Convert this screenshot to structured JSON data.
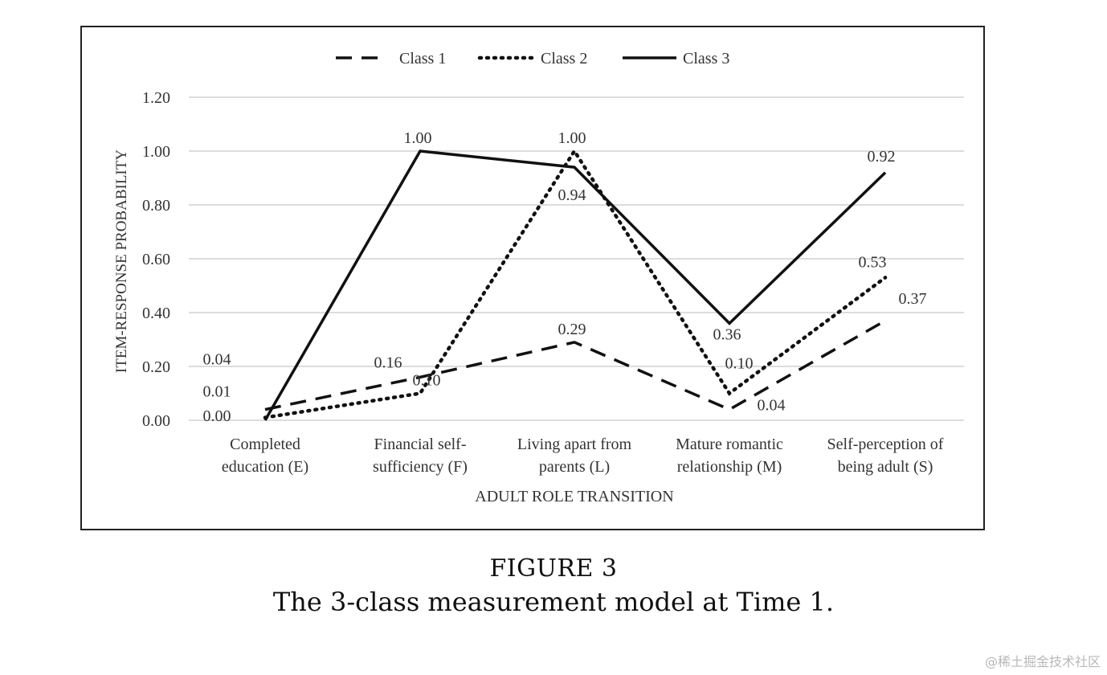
{
  "chart_data": {
    "type": "line",
    "title": "",
    "xlabel": "ADULT ROLE TRANSITION",
    "ylabel": "ITEM-RESPONSE PROBABILITY",
    "ylim": [
      0,
      1.2
    ],
    "yticks": [
      "0.00",
      "0.20",
      "0.40",
      "0.60",
      "0.80",
      "1.00",
      "1.20"
    ],
    "categories": [
      [
        "Completed",
        "education (E)"
      ],
      [
        "Financial self-",
        "sufficiency (F)"
      ],
      [
        "Living apart from",
        "parents (L)"
      ],
      [
        "Mature romantic",
        "relationship (M)"
      ],
      [
        "Self-perception of",
        "being adult (S)"
      ]
    ],
    "series": [
      {
        "name": "Class 1",
        "style": "dashed",
        "values": [
          0.04,
          0.16,
          0.29,
          0.04,
          0.37
        ],
        "labels": [
          "0.04",
          "0.16",
          "0.29",
          "0.04",
          "0.37"
        ]
      },
      {
        "name": "Class 2",
        "style": "dotted",
        "values": [
          0.01,
          0.1,
          1.0,
          0.1,
          0.53
        ],
        "labels": [
          "0.01",
          "0.10",
          "1.00",
          "0.10",
          "0.53"
        ]
      },
      {
        "name": "Class 3",
        "style": "solid",
        "values": [
          0.0,
          1.0,
          0.94,
          0.36,
          0.92
        ],
        "labels": [
          "0.00",
          "1.00",
          "0.94",
          "0.36",
          "0.92"
        ]
      }
    ],
    "grid": true,
    "legend": "top"
  },
  "caption": {
    "figure_label": "FIGURE 3",
    "title": "The 3-class measurement model at Time 1."
  },
  "watermark": "@稀土掘金技术社区",
  "colors": {
    "line": "#111111",
    "grid": "#c8c8c8",
    "text": "#333333"
  }
}
